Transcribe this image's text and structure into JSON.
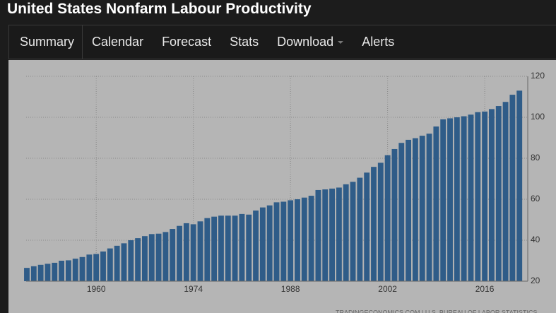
{
  "header": {
    "title": "United States Nonfarm Labour Productivity"
  },
  "nav": {
    "tabs": [
      "Summary",
      "Calendar",
      "Forecast",
      "Stats",
      "Download",
      "Alerts"
    ]
  },
  "chart_data": {
    "type": "bar",
    "x": [
      1950,
      1951,
      1952,
      1953,
      1954,
      1955,
      1956,
      1957,
      1958,
      1959,
      1960,
      1961,
      1962,
      1963,
      1964,
      1965,
      1966,
      1967,
      1968,
      1969,
      1970,
      1971,
      1972,
      1973,
      1974,
      1975,
      1976,
      1977,
      1978,
      1979,
      1980,
      1981,
      1982,
      1983,
      1984,
      1985,
      1986,
      1987,
      1988,
      1989,
      1990,
      1991,
      1992,
      1993,
      1994,
      1995,
      1996,
      1997,
      1998,
      1999,
      2000,
      2001,
      2002,
      2003,
      2004,
      2005,
      2006,
      2007,
      2008,
      2009,
      2010,
      2011,
      2012,
      2013,
      2014,
      2015,
      2016,
      2017,
      2018,
      2019,
      2020,
      2021
    ],
    "values": [
      26.5,
      27.3,
      28,
      28.5,
      29,
      30,
      30.2,
      31,
      31.8,
      33,
      33.3,
      34.5,
      36,
      37.3,
      38.5,
      40,
      41,
      42,
      43,
      43.2,
      44,
      45.5,
      47,
      48.3,
      47.8,
      49.2,
      50.8,
      51.5,
      52,
      52,
      52,
      52.8,
      52.5,
      54.5,
      56,
      57,
      58.5,
      58.8,
      59.5,
      60,
      60.8,
      61.7,
      64.5,
      64.8,
      65.2,
      65.7,
      67.3,
      68.5,
      70.5,
      73,
      75.8,
      77.8,
      81.5,
      84.5,
      87.5,
      89,
      89.8,
      91,
      92,
      95.5,
      99,
      99.5,
      100,
      100.5,
      101.3,
      102.5,
      102.8,
      104,
      105.5,
      107.5,
      111,
      113
    ],
    "color": "#2f5c88",
    "xlim": [
      1949.9,
      2022.2
    ],
    "xticks": [
      1960,
      1974,
      1988,
      2002,
      2016
    ],
    "ylim": [
      20,
      120
    ],
    "yticks": [
      20,
      40,
      60,
      80,
      100,
      120
    ],
    "grid": true,
    "source": "TRADINGECONOMICS.COM | U.S. BUREAU OF LABOR STATISTICS"
  }
}
